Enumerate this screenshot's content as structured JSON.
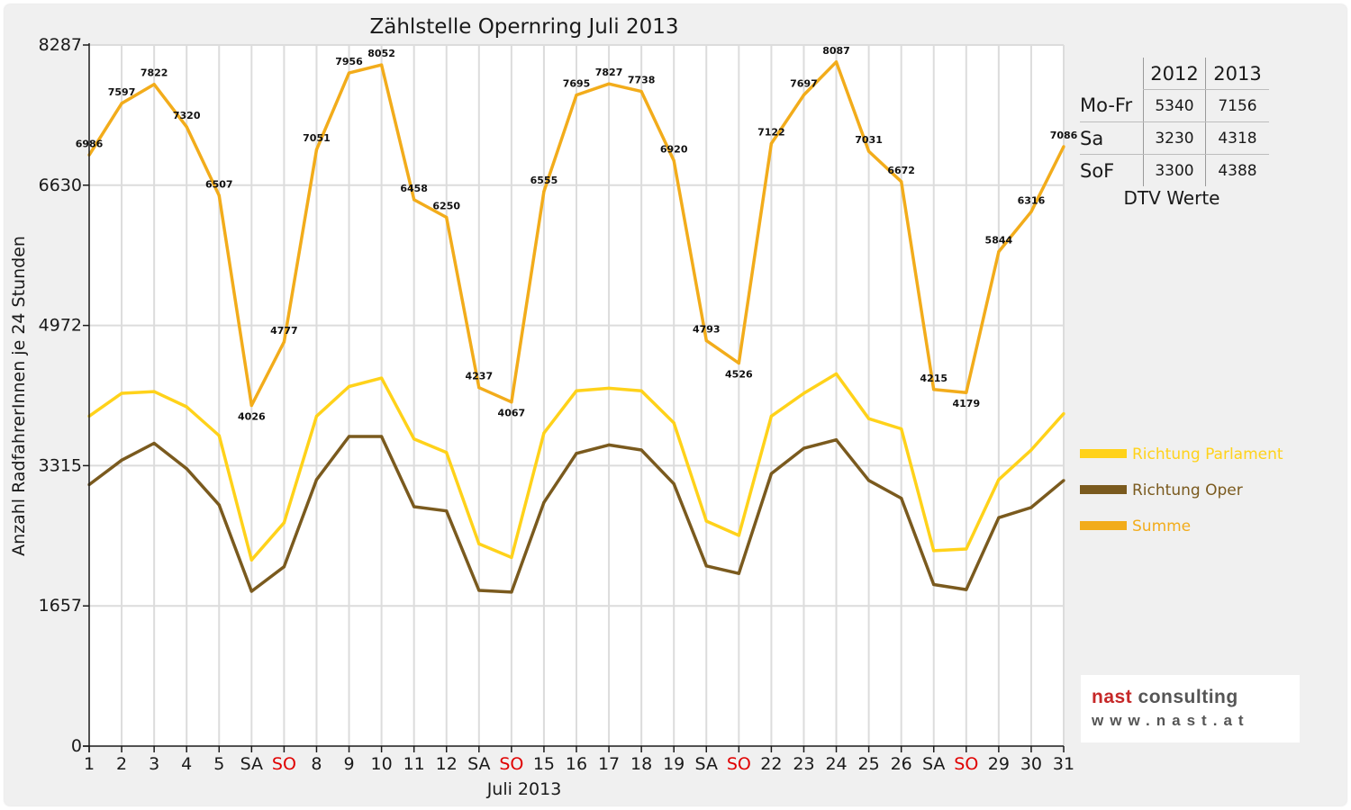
{
  "chart_data": {
    "type": "line",
    "title": "Zählstelle Opernring Juli 2013",
    "xlabel": "Juli 2013",
    "ylabel": "Anzahl RadfahrerInnen je 24 Stunden",
    "ylim": [
      0,
      8287
    ],
    "yticks": [
      0,
      1657,
      3315,
      4972,
      6630,
      8287
    ],
    "grid": true,
    "legend_position": "right",
    "categories": [
      "1",
      "2",
      "3",
      "4",
      "5",
      "SA",
      "SO",
      "8",
      "9",
      "10",
      "11",
      "12",
      "SA",
      "SO",
      "15",
      "16",
      "17",
      "18",
      "19",
      "SA",
      "SO",
      "22",
      "23",
      "24",
      "25",
      "26",
      "SA",
      "SO",
      "29",
      "30",
      "31"
    ],
    "highlight_categories": [
      "SO"
    ],
    "series": [
      {
        "name": "Richtung Parlament",
        "color": "#ffd21a",
        "values": [
          3900,
          4170,
          4190,
          4010,
          3670,
          2200,
          2640,
          3900,
          4250,
          4350,
          3630,
          3470,
          2390,
          2230,
          3700,
          4200,
          4230,
          4200,
          3820,
          2660,
          2490,
          3900,
          4170,
          4400,
          3870,
          3750,
          2310,
          2330,
          3150,
          3500,
          3930
        ]
      },
      {
        "name": "Richtung Oper",
        "color": "#7a5a1e",
        "values": [
          3090,
          3380,
          3580,
          3280,
          2850,
          1830,
          2120,
          3150,
          3660,
          3660,
          2830,
          2780,
          1840,
          1820,
          2880,
          3460,
          3560,
          3500,
          3100,
          2130,
          2040,
          3220,
          3520,
          3620,
          3140,
          2930,
          1910,
          1850,
          2700,
          2820,
          3140
        ]
      },
      {
        "name": "Summe",
        "color": "#f2ac1b",
        "values": [
          6986,
          7597,
          7822,
          7320,
          6507,
          4026,
          4777,
          7051,
          7956,
          8052,
          6458,
          6250,
          4237,
          4067,
          6555,
          7695,
          7827,
          7738,
          6920,
          4793,
          4526,
          7122,
          7697,
          8087,
          7031,
          6672,
          4215,
          4179,
          5844,
          6316,
          7086
        ]
      }
    ]
  },
  "dtv_table": {
    "caption": "DTV Werte",
    "columns": [
      "2012",
      "2013"
    ],
    "rows": [
      {
        "label": "Mo-Fr",
        "v2012": "5340",
        "v2013": "7156"
      },
      {
        "label": "Sa",
        "v2012": "3230",
        "v2013": "4318"
      },
      {
        "label": "SoF",
        "v2012": "3300",
        "v2013": "4388"
      }
    ]
  },
  "logo": {
    "brand_part1": "nast",
    "brand_part2": "consulting",
    "url": "www.nast.at"
  },
  "colors": {
    "background": "#f0f0f0",
    "plot_background": "#ffffff",
    "grid": "#dcdcdc",
    "sunday_label": "#e00000",
    "brand_red": "#c62828"
  }
}
